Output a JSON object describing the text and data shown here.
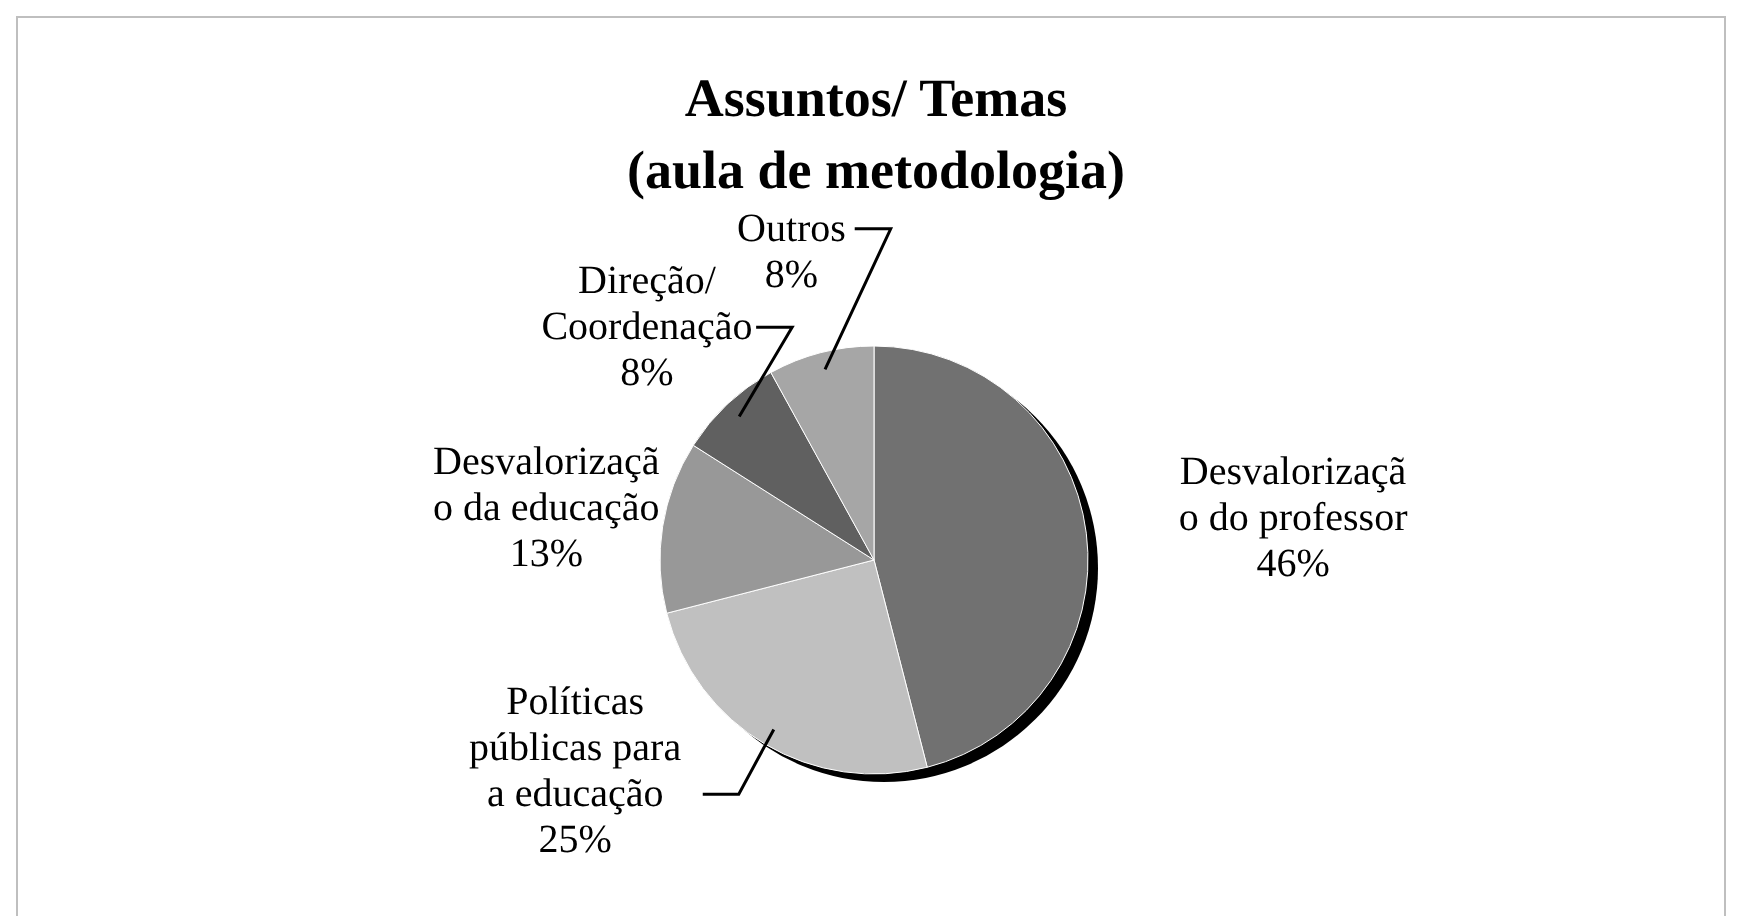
{
  "chart_data": {
    "type": "pie",
    "title": "Assuntos/ Temas\n(aula de metodologia)",
    "categories": [
      "Desvalorização do professor",
      "Políticas públicas para a educação",
      "Desvalorização da educação",
      "Direção/ Coordenação",
      "Outros"
    ],
    "values": [
      46,
      25,
      13,
      8,
      8
    ],
    "colors": [
      "#717171",
      "#c0c0c0",
      "#989898",
      "#606060",
      "#a6a6a6"
    ],
    "value_labels": [
      "46%",
      "25%",
      "13%",
      "8%",
      "8%"
    ]
  }
}
